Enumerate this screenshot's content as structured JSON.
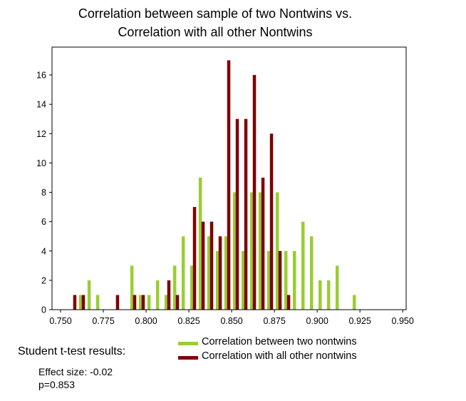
{
  "chart_data": {
    "type": "bar",
    "title": [
      "Correlation between sample of two Nontwins vs.",
      "Correlation with all other Nontwins"
    ],
    "xlabel": "",
    "ylabel": "",
    "xlim": [
      0.745,
      0.952
    ],
    "ylim": [
      0,
      17.9
    ],
    "xticks": [
      "0.750",
      "0.775",
      "0.800",
      "0.825",
      "0.850",
      "0.875",
      "0.900",
      "0.925",
      "0.950"
    ],
    "xtick_values": [
      0.75,
      0.775,
      0.8,
      0.825,
      0.85,
      0.875,
      0.9,
      0.925,
      0.95
    ],
    "yticks": [
      "0",
      "2",
      "4",
      "6",
      "8",
      "10",
      "12",
      "14",
      "16"
    ],
    "ytick_values": [
      0,
      2,
      4,
      6,
      8,
      10,
      12,
      14,
      16
    ],
    "grid": false,
    "legend_position": "below-center",
    "series": [
      {
        "name": "Correlation between two nontwins",
        "color": "#9acd32",
        "points": [
          {
            "x": 0.7617,
            "y": 1
          },
          {
            "x": 0.7667,
            "y": 2
          },
          {
            "x": 0.7717,
            "y": 1
          },
          {
            "x": 0.7917,
            "y": 3
          },
          {
            "x": 0.7967,
            "y": 1
          },
          {
            "x": 0.8017,
            "y": 1
          },
          {
            "x": 0.8067,
            "y": 2
          },
          {
            "x": 0.8117,
            "y": 1
          },
          {
            "x": 0.8167,
            "y": 3
          },
          {
            "x": 0.8217,
            "y": 5
          },
          {
            "x": 0.8267,
            "y": 3
          },
          {
            "x": 0.8317,
            "y": 9
          },
          {
            "x": 0.8367,
            "y": 5
          },
          {
            "x": 0.8417,
            "y": 4
          },
          {
            "x": 0.8467,
            "y": 5
          },
          {
            "x": 0.8517,
            "y": 8
          },
          {
            "x": 0.8567,
            "y": 4
          },
          {
            "x": 0.8617,
            "y": 8
          },
          {
            "x": 0.8667,
            "y": 8
          },
          {
            "x": 0.8717,
            "y": 4
          },
          {
            "x": 0.8767,
            "y": 8
          },
          {
            "x": 0.8817,
            "y": 4
          },
          {
            "x": 0.8867,
            "y": 4
          },
          {
            "x": 0.8917,
            "y": 6
          },
          {
            "x": 0.8967,
            "y": 5
          },
          {
            "x": 0.9017,
            "y": 2
          },
          {
            "x": 0.9067,
            "y": 2
          },
          {
            "x": 0.9117,
            "y": 3
          },
          {
            "x": 0.9217,
            "y": 1
          }
        ]
      },
      {
        "name": "Correlation with all other nontwins",
        "color": "#800000",
        "points": [
          {
            "x": 0.7583,
            "y": 1
          },
          {
            "x": 0.7633,
            "y": 1
          },
          {
            "x": 0.7833,
            "y": 1
          },
          {
            "x": 0.7933,
            "y": 1
          },
          {
            "x": 0.7983,
            "y": 1
          },
          {
            "x": 0.8133,
            "y": 2
          },
          {
            "x": 0.8183,
            "y": 1
          },
          {
            "x": 0.8283,
            "y": 7
          },
          {
            "x": 0.8333,
            "y": 6
          },
          {
            "x": 0.8383,
            "y": 6
          },
          {
            "x": 0.8433,
            "y": 5
          },
          {
            "x": 0.8483,
            "y": 17
          },
          {
            "x": 0.8533,
            "y": 13
          },
          {
            "x": 0.8583,
            "y": 13
          },
          {
            "x": 0.8633,
            "y": 16
          },
          {
            "x": 0.8683,
            "y": 9
          },
          {
            "x": 0.8733,
            "y": 12
          },
          {
            "x": 0.8783,
            "y": 4
          },
          {
            "x": 0.8833,
            "y": 1
          }
        ]
      }
    ]
  },
  "stats": {
    "heading": "Student t-test results:",
    "effect_size": "Effect size:  -0.02",
    "p_value": "p=0.853"
  }
}
